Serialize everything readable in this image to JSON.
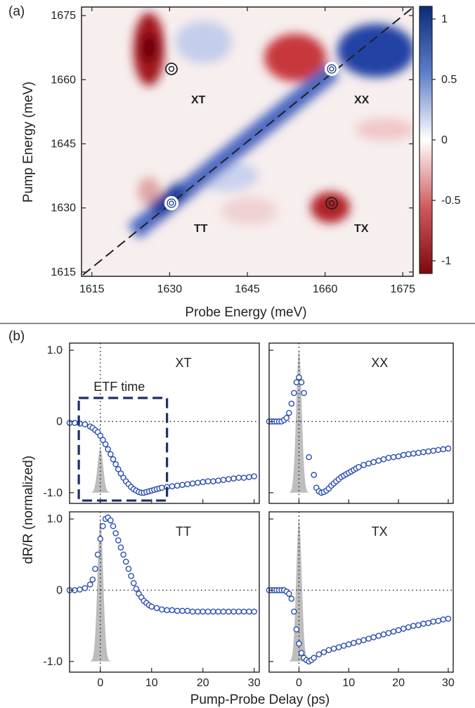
{
  "panel_a": {
    "tag": "(a)",
    "xlabel": "Probe Energy (meV)",
    "ylabel": "Pump Energy (meV)",
    "ticks": [
      "1615",
      "1630",
      "1645",
      "1660",
      "1675"
    ],
    "colorbar_ticks": [
      "1",
      "0.5",
      "0",
      "-0.5",
      "-1"
    ],
    "labels": [
      "XT",
      "XX",
      "TT",
      "TX"
    ]
  },
  "panel_b": {
    "tag": "(b)",
    "xlabel": "Pump-Probe Delay (ps)",
    "ylabel": "dR/R (normalized)",
    "ytick_labels": [
      "1.0",
      "0",
      "-1.0"
    ],
    "xtick_labels": [
      "0",
      "10",
      "20",
      "30"
    ],
    "titles": [
      "XT",
      "XX",
      "TT",
      "TX"
    ],
    "annotation": "ETF time"
  },
  "colors": {
    "marker": "#2b4fb0",
    "pulse": "#bdbdbd",
    "box": "#1d2f66",
    "pos": "#0b2a78",
    "neg": "#8e0d10"
  },
  "chart_data": [
    {
      "type": "heatmap",
      "title": "",
      "xlabel": "Probe Energy (meV)",
      "ylabel": "Pump Energy (meV)",
      "xlim": [
        1613,
        1677
      ],
      "ylim": [
        1614,
        1677
      ],
      "clim": [
        -1,
        1
      ],
      "features": [
        {
          "x": 1630,
          "y": 1660,
          "label": "XT",
          "type": "cross peak"
        },
        {
          "x": 1660,
          "y": 1660,
          "label": "XX",
          "type": "diagonal peak"
        },
        {
          "x": 1630,
          "y": 1630,
          "label": "TT",
          "type": "diagonal peak"
        },
        {
          "x": 1660,
          "y": 1630,
          "label": "TX",
          "type": "cross peak"
        }
      ]
    },
    {
      "type": "scatter",
      "title": "XT",
      "xlim": [
        -6,
        31
      ],
      "ylim": [
        -1.15,
        1.1
      ],
      "x": [
        -6,
        -5,
        -4,
        -3,
        -2,
        -1.5,
        -1,
        -0.5,
        0,
        0.5,
        1,
        1.5,
        2,
        2.5,
        3,
        3.5,
        4,
        4.5,
        5,
        5.5,
        6,
        6.5,
        7,
        7.5,
        8,
        8.5,
        9,
        9.5,
        10,
        10.5,
        11,
        11.5,
        12,
        13,
        14,
        15,
        16,
        17,
        18,
        19,
        20,
        21,
        22,
        23,
        24,
        25,
        26,
        27,
        28,
        29,
        30
      ],
      "y": [
        -0.02,
        -0.02,
        -0.03,
        -0.04,
        -0.07,
        -0.09,
        -0.12,
        -0.15,
        -0.2,
        -0.26,
        -0.32,
        -0.39,
        -0.46,
        -0.53,
        -0.6,
        -0.67,
        -0.73,
        -0.79,
        -0.84,
        -0.88,
        -0.92,
        -0.95,
        -0.97,
        -0.99,
        -1.0,
        -1.0,
        -0.99,
        -0.98,
        -0.97,
        -0.96,
        -0.95,
        -0.94,
        -0.93,
        -0.92,
        -0.91,
        -0.9,
        -0.89,
        -0.88,
        -0.87,
        -0.86,
        -0.85,
        -0.84,
        -0.84,
        -0.83,
        -0.82,
        -0.81,
        -0.8,
        -0.79,
        -0.79,
        -0.78,
        -0.77
      ]
    },
    {
      "type": "scatter",
      "title": "XX",
      "xlim": [
        -6,
        31
      ],
      "ylim": [
        -1.15,
        1.1
      ],
      "x": [
        -6,
        -5.5,
        -5,
        -4.5,
        -4,
        -3.5,
        -3,
        -2.5,
        -2,
        -1.5,
        -1,
        -0.5,
        0,
        0.5,
        1,
        2,
        3,
        3.5,
        4,
        4.5,
        5,
        5.5,
        6,
        6.5,
        7,
        7.5,
        8,
        8.5,
        9,
        9.5,
        10,
        10.5,
        11,
        11.5,
        12,
        13,
        14,
        15,
        16,
        17,
        18,
        19,
        20,
        21,
        22,
        23,
        24,
        25,
        26,
        27,
        28,
        29,
        30
      ],
      "y": [
        0,
        0,
        0,
        0,
        0,
        0,
        0.02,
        0.05,
        0.12,
        0.25,
        0.4,
        0.55,
        0.62,
        0.55,
        0.4,
        -0.5,
        -0.75,
        -0.93,
        -0.98,
        -1.0,
        -0.99,
        -0.97,
        -0.94,
        -0.9,
        -0.87,
        -0.84,
        -0.81,
        -0.78,
        -0.76,
        -0.74,
        -0.72,
        -0.7,
        -0.68,
        -0.66,
        -0.64,
        -0.61,
        -0.59,
        -0.57,
        -0.55,
        -0.53,
        -0.51,
        -0.5,
        -0.49,
        -0.47,
        -0.46,
        -0.45,
        -0.44,
        -0.43,
        -0.42,
        -0.41,
        -0.4,
        -0.39,
        -0.38
      ]
    },
    {
      "type": "scatter",
      "title": "TT",
      "xlim": [
        -6,
        31
      ],
      "ylim": [
        -1.15,
        1.1
      ],
      "x": [
        -6,
        -5,
        -4,
        -3,
        -2,
        -1.5,
        -1,
        -0.5,
        0,
        0.5,
        1,
        1.5,
        2,
        2.5,
        3,
        3.5,
        4,
        4.5,
        5,
        5.5,
        6,
        6.5,
        7,
        7.5,
        8,
        8.5,
        9,
        9.5,
        10,
        11,
        12,
        13,
        14,
        15,
        16,
        17,
        18,
        19,
        20,
        21,
        22,
        23,
        24,
        25,
        26,
        27,
        28,
        29,
        30
      ],
      "y": [
        0,
        0,
        0.01,
        0.03,
        0.08,
        0.15,
        0.3,
        0.5,
        0.72,
        0.9,
        1.0,
        1.02,
        0.98,
        0.9,
        0.8,
        0.7,
        0.6,
        0.5,
        0.4,
        0.3,
        0.2,
        0.1,
        0.02,
        -0.05,
        -0.1,
        -0.15,
        -0.18,
        -0.21,
        -0.23,
        -0.25,
        -0.27,
        -0.28,
        -0.28,
        -0.29,
        -0.29,
        -0.29,
        -0.3,
        -0.3,
        -0.3,
        -0.3,
        -0.3,
        -0.3,
        -0.3,
        -0.3,
        -0.3,
        -0.3,
        -0.3,
        -0.3,
        -0.3
      ]
    },
    {
      "type": "scatter",
      "title": "TX",
      "xlim": [
        -6,
        31
      ],
      "ylim": [
        -1.15,
        1.1
      ],
      "x": [
        -6,
        -5.5,
        -5,
        -4.5,
        -4,
        -3.5,
        -3,
        -2.5,
        -2,
        -1.5,
        -1,
        -0.5,
        0,
        0.5,
        1,
        1.5,
        2,
        2.5,
        3,
        4,
        5,
        6,
        7,
        8,
        9,
        10,
        11,
        12,
        13,
        14,
        15,
        16,
        17,
        18,
        19,
        20,
        21,
        22,
        23,
        24,
        25,
        26,
        27,
        28,
        29,
        30
      ],
      "y": [
        0,
        0,
        0,
        0,
        0,
        0,
        0,
        -0.02,
        -0.05,
        -0.12,
        -0.3,
        -0.55,
        -0.75,
        -0.88,
        -0.95,
        -0.98,
        -1.0,
        -0.98,
        -0.95,
        -0.9,
        -0.87,
        -0.84,
        -0.82,
        -0.8,
        -0.78,
        -0.76,
        -0.74,
        -0.72,
        -0.7,
        -0.68,
        -0.66,
        -0.64,
        -0.62,
        -0.6,
        -0.58,
        -0.56,
        -0.54,
        -0.52,
        -0.5,
        -0.49,
        -0.47,
        -0.46,
        -0.44,
        -0.43,
        -0.41,
        -0.4
      ]
    }
  ]
}
